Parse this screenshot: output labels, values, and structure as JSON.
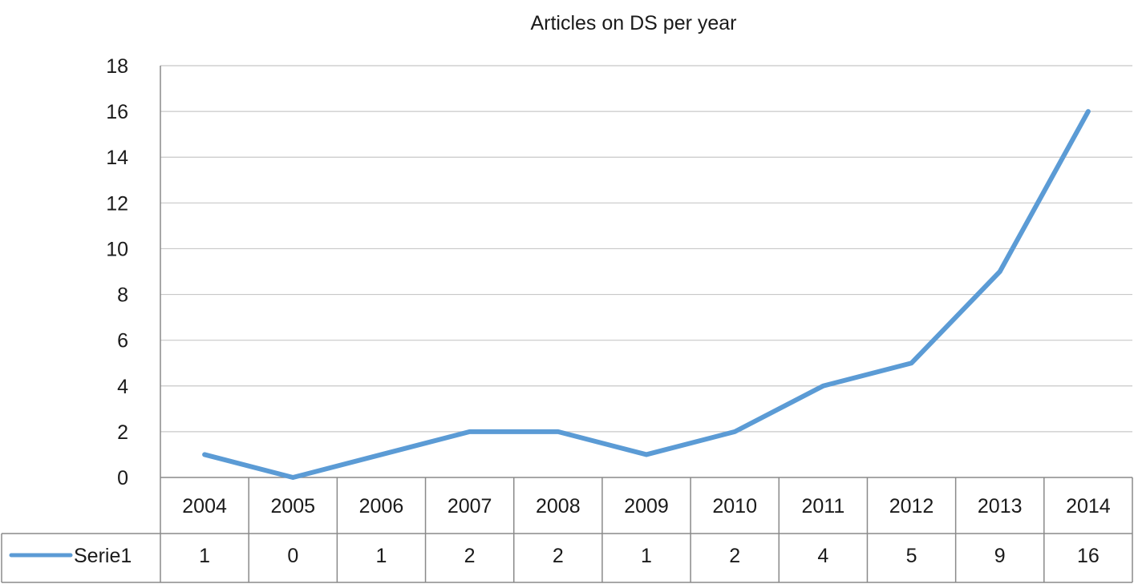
{
  "chart_data": {
    "type": "line",
    "title": "Articles on DS per year",
    "xlabel": "",
    "ylabel": "",
    "categories": [
      "2004",
      "2005",
      "2006",
      "2007",
      "2008",
      "2009",
      "2010",
      "2011",
      "2012",
      "2013",
      "2014"
    ],
    "series": [
      {
        "name": "Serie1",
        "values": [
          1,
          0,
          1,
          2,
          2,
          1,
          2,
          4,
          5,
          9,
          16
        ],
        "color": "#5b9bd5"
      }
    ],
    "ylim": [
      0,
      18
    ],
    "yticks": [
      0,
      2,
      4,
      6,
      8,
      10,
      12,
      14,
      16,
      18
    ],
    "grid": true,
    "legend": "data-table-left",
    "data_table": true,
    "grid_color": "#c8c8c8",
    "table_color": "#8a8a8a"
  }
}
